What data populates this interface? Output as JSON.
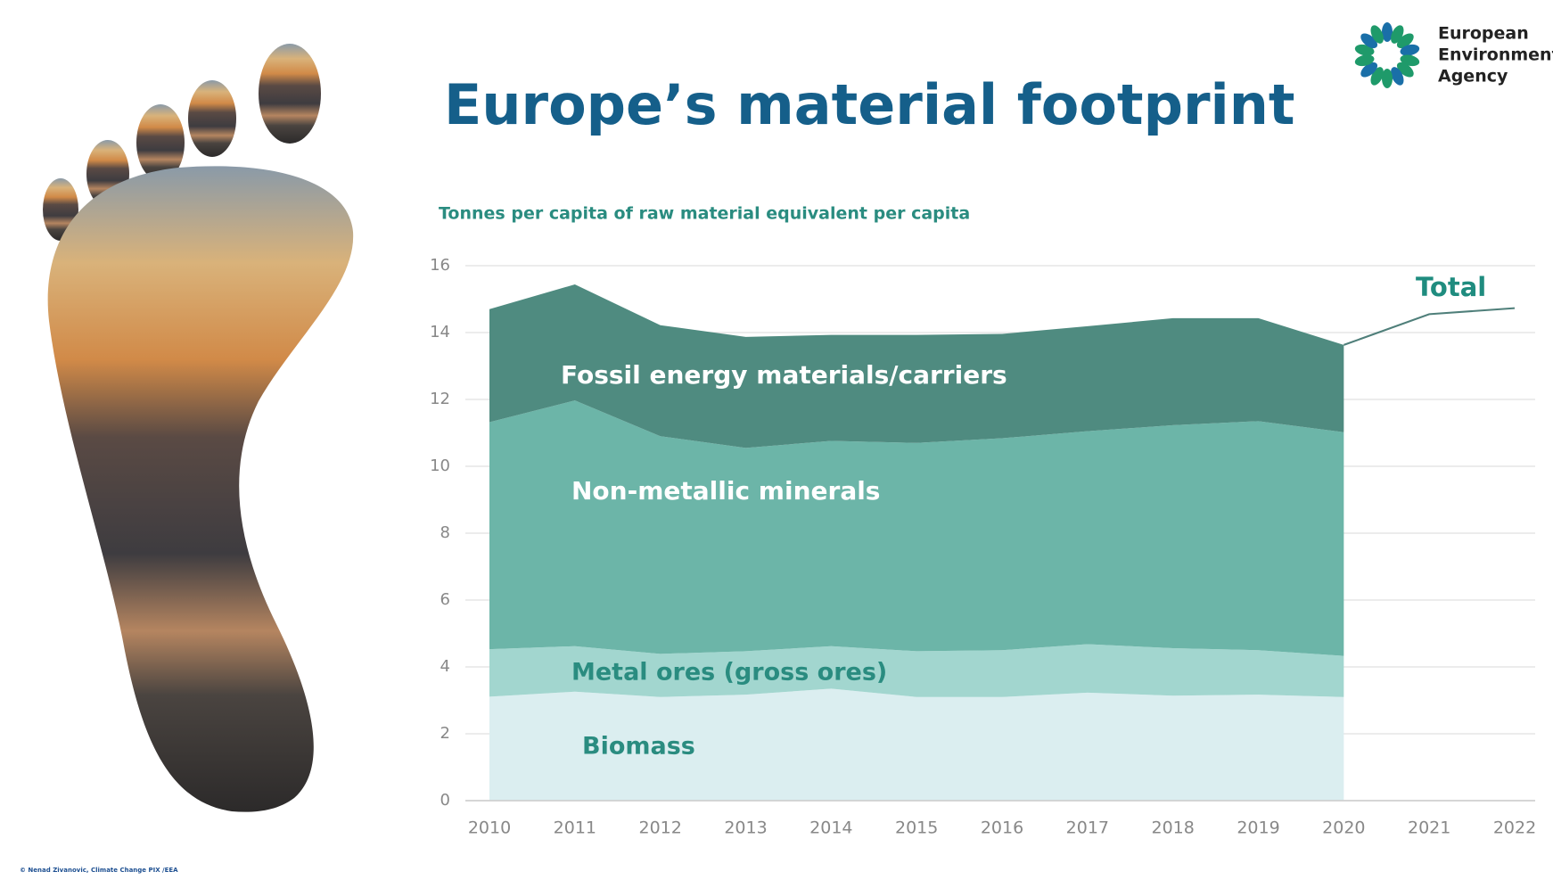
{
  "chart_data": {
    "type": "stacked_area",
    "title": "Europe’s material footprint",
    "subtitle": "Tonnes per capita of raw material equivalent per capita",
    "x": [
      2010,
      2011,
      2012,
      2013,
      2014,
      2015,
      2016,
      2017,
      2018,
      2019,
      2020,
      2021,
      2022
    ],
    "xlim": [
      2010,
      2022
    ],
    "xticks": [
      2010,
      2011,
      2012,
      2013,
      2014,
      2015,
      2016,
      2017,
      2018,
      2019,
      2020,
      2021,
      2022
    ],
    "ylim": [
      0,
      16
    ],
    "yticks": [
      0,
      2,
      4,
      6,
      8,
      10,
      12,
      14,
      16
    ],
    "grid": true,
    "series": [
      {
        "name": "Biomass",
        "color": "#dbeef0",
        "label_color": "#2a8c80",
        "values": [
          3.11,
          3.26,
          3.1,
          3.17,
          3.35,
          3.1,
          3.1,
          3.23,
          3.14,
          3.17,
          3.1,
          null,
          null
        ]
      },
      {
        "name": "Metal ores (gross ores)",
        "color": "#a2d6cf",
        "label_color": "#2a8c80",
        "values": [
          1.42,
          1.36,
          1.29,
          1.3,
          1.27,
          1.37,
          1.4,
          1.45,
          1.42,
          1.33,
          1.23,
          null,
          null
        ]
      },
      {
        "name": "Non-metallic minerals",
        "color": "#6cb5a8",
        "label_color": "#ffffff",
        "values": [
          6.79,
          7.35,
          6.51,
          6.08,
          6.14,
          6.23,
          6.34,
          6.37,
          6.67,
          6.85,
          6.69,
          null,
          null
        ]
      },
      {
        "name": "Fossil energy materials/carriers",
        "color": "#4f8b80",
        "label_color": "#ffffff",
        "values": [
          3.38,
          3.47,
          3.32,
          3.32,
          3.17,
          3.23,
          3.12,
          3.14,
          3.2,
          3.08,
          2.61,
          null,
          null
        ]
      },
      {
        "name": "Total",
        "type": "line",
        "color": "#4f7f7a",
        "label_color": "#1f8c7f",
        "values": [
          null,
          null,
          null,
          null,
          null,
          null,
          null,
          null,
          null,
          null,
          13.63,
          14.55,
          14.73
        ]
      }
    ]
  },
  "logo_text": [
    "European",
    "Environment",
    "Agency"
  ],
  "photo_credit": "© Nenad Zivanovic, Climate Change PIX /EEA"
}
